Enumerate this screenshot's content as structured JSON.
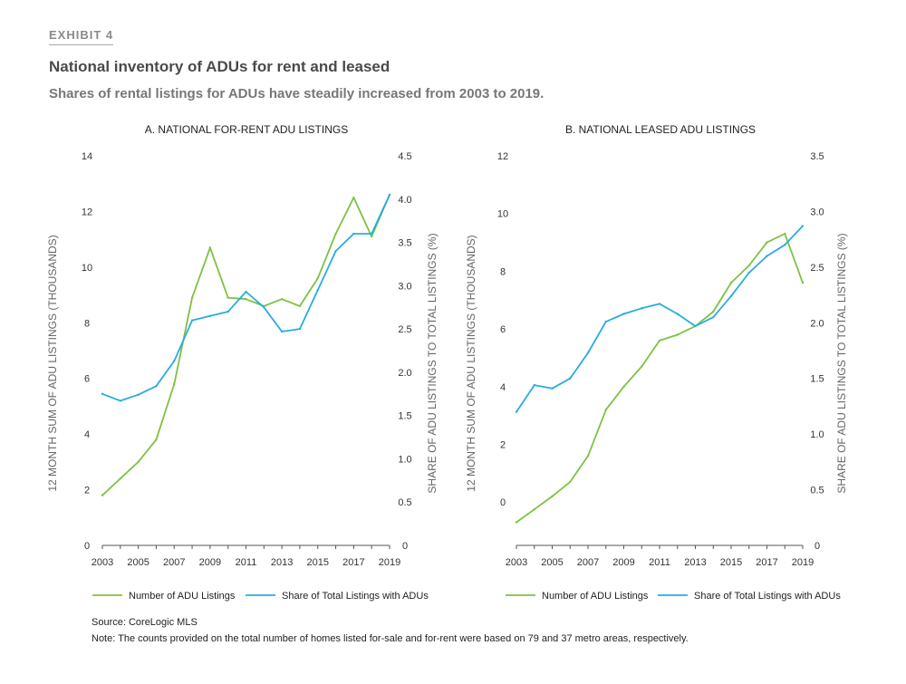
{
  "header": {
    "exhibit": "EXHIBIT 4",
    "title": "National inventory of ADUs for rent and leased",
    "subtitle": "Shares of rental listings for ADUs have steadily increased from 2003 to 2019."
  },
  "colors": {
    "count": "#7dc242",
    "share": "#29abe2",
    "axis": "#555555",
    "text": "#333333"
  },
  "chart_data": [
    {
      "type": "line",
      "title": "A. NATIONAL FOR-RENT ADU LISTINGS",
      "x": [
        2003,
        2004,
        2005,
        2006,
        2007,
        2008,
        2009,
        2010,
        2011,
        2012,
        2013,
        2014,
        2015,
        2016,
        2017,
        2018,
        2019
      ],
      "xticks": [
        "2003",
        "2005",
        "2007",
        "2009",
        "2011",
        "2013",
        "2015",
        "2017",
        "2019"
      ],
      "ylabel": "12 MONTH SUM OF ADU LISTINGS (THOUSANDS)",
      "y2label": "SHARE OF ADU LISTINGS TO TOTAL LISTINGS (%)",
      "ylim": [
        0,
        14
      ],
      "yticks": [
        "0",
        "2",
        "4",
        "6",
        "8",
        "10",
        "12",
        "14"
      ],
      "y2lim": [
        0,
        4.5
      ],
      "y2ticks": [
        "0",
        "0.5",
        "1.0",
        "1.5",
        "2.0",
        "2.5",
        "3.0",
        "3.5",
        "4.0",
        "4.5"
      ],
      "series": [
        {
          "name": "Number of ADU Listings",
          "axis": "left",
          "values": [
            1.8,
            2.4,
            3.0,
            3.8,
            5.8,
            8.9,
            10.7,
            8.9,
            8.85,
            8.6,
            8.85,
            8.6,
            9.6,
            11.2,
            12.5,
            11.1,
            12.6
          ]
        },
        {
          "name": "Share of Total Listings with ADUs",
          "axis": "right",
          "values": [
            1.75,
            1.67,
            1.74,
            1.84,
            2.13,
            2.6,
            2.65,
            2.7,
            2.93,
            2.75,
            2.47,
            2.5,
            2.95,
            3.4,
            3.6,
            3.6,
            4.05
          ]
        }
      ]
    },
    {
      "type": "line",
      "title": "B. NATIONAL LEASED ADU LISTINGS",
      "x": [
        2003,
        2004,
        2005,
        2006,
        2007,
        2008,
        2009,
        2010,
        2011,
        2012,
        2013,
        2014,
        2015,
        2016,
        2017,
        2018,
        2019
      ],
      "xticks": [
        "2003",
        "2005",
        "2007",
        "2009",
        "2011",
        "2013",
        "2015",
        "2017",
        "2019"
      ],
      "ylabel": "12 MONTH SUM OF ADU LISTINGS (THOUSANDS)",
      "y2label": "SHARE OF ADU LISTINGS TO TOTAL LISTINGS (%)",
      "ylim": [
        -1.5,
        12
      ],
      "yticks": [
        "0",
        "2",
        "4",
        "6",
        "8",
        "10",
        "12"
      ],
      "ytick_values": [
        0,
        2,
        4,
        6,
        8,
        10,
        12
      ],
      "y2lim": [
        0,
        3.5
      ],
      "y2ticks": [
        "0",
        "0.5",
        "1.0",
        "1.5",
        "2.0",
        "2.5",
        "3.0",
        "3.5"
      ],
      "series": [
        {
          "name": "Number of ADU Listings",
          "axis": "left",
          "values": [
            -0.7,
            -0.25,
            0.2,
            0.7,
            1.6,
            3.2,
            4.0,
            4.7,
            5.6,
            5.8,
            6.1,
            6.6,
            7.6,
            8.2,
            9.0,
            9.3,
            7.6
          ]
        },
        {
          "name": "Share of Total Listings with ADUs",
          "axis": "right",
          "values": [
            1.2,
            1.44,
            1.41,
            1.5,
            1.73,
            2.01,
            2.08,
            2.13,
            2.17,
            2.08,
            1.97,
            2.05,
            2.24,
            2.45,
            2.6,
            2.7,
            2.87
          ]
        }
      ]
    }
  ],
  "footer": {
    "source": "Source: CoreLogic MLS",
    "note": "Note: The counts provided on the total number of homes listed for-sale and for-rent were based on 79 and 37 metro areas, respectively."
  }
}
